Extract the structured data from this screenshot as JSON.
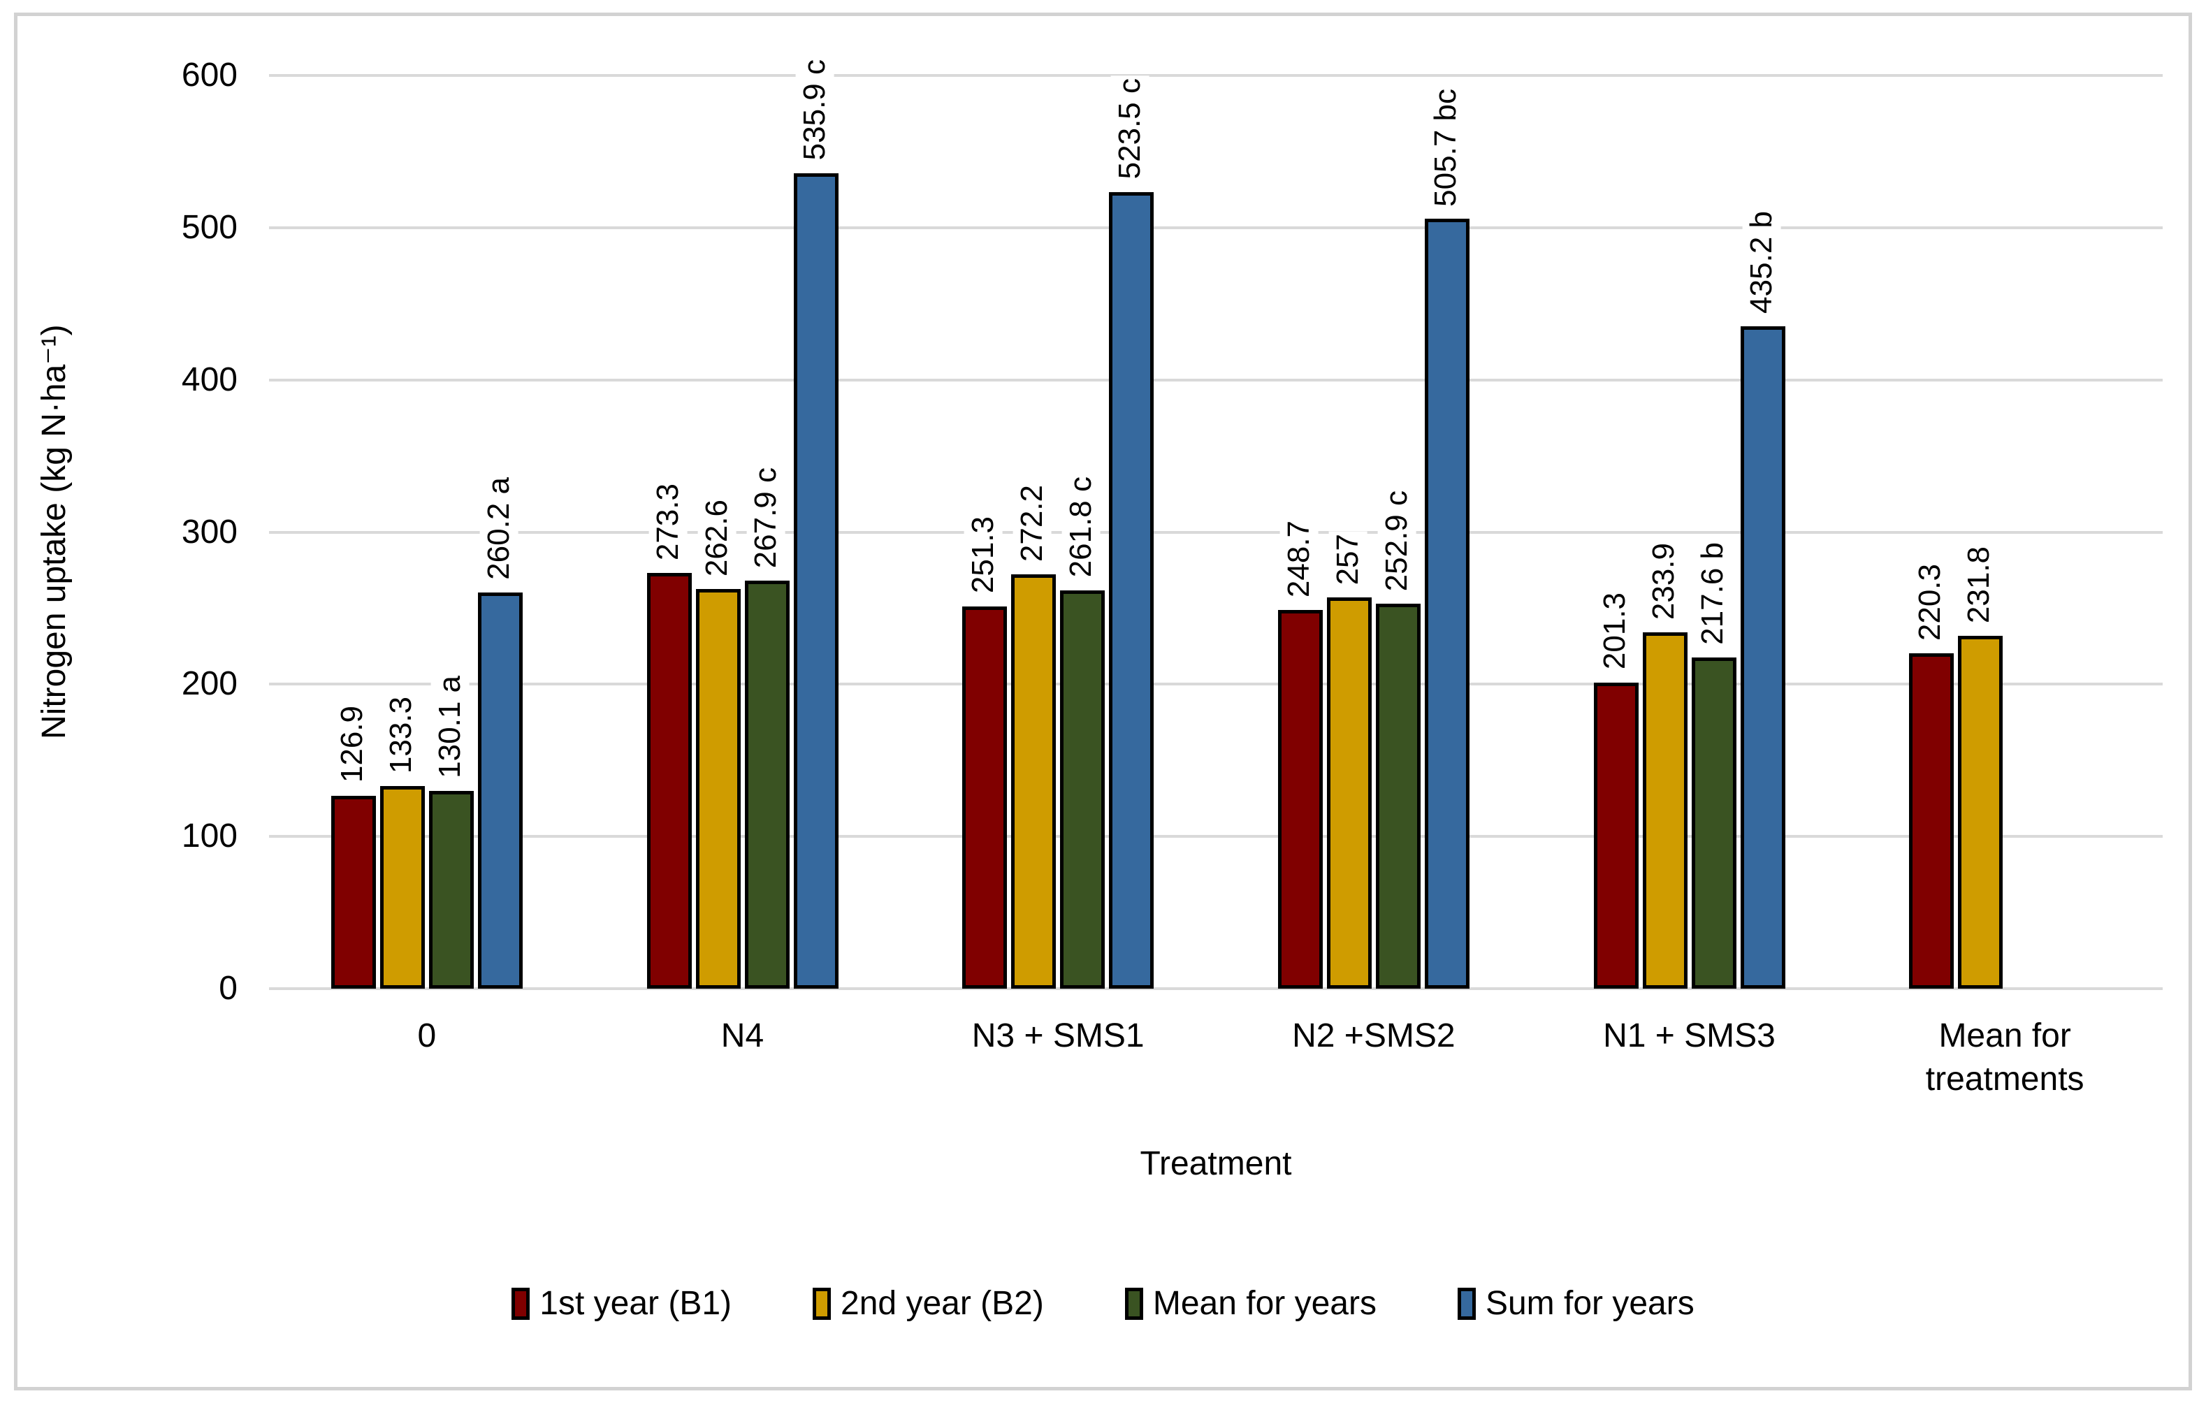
{
  "chart_data": {
    "type": "bar",
    "title": "",
    "xlabel": "Treatment",
    "ylabel": "Nitrogen uptake (kg N·ha⁻¹)",
    "ylim": [
      0,
      600
    ],
    "yticks": [
      0,
      100,
      200,
      300,
      400,
      500,
      600
    ],
    "grid": true,
    "grid_color": "#D9D9D9",
    "frame_color": "#D2D2D2",
    "legend_position": "bottom",
    "categories": [
      "0",
      "N4",
      "N3 + SMS1",
      "N2 +SMS2",
      "N1 + SMS3",
      "Mean for treatments"
    ],
    "series": [
      {
        "name": "1st year (B1)",
        "color": "#800000",
        "values": [
          126.9,
          273.3,
          251.3,
          248.7,
          201.3,
          220.3
        ],
        "labels": [
          "126.9",
          "273.3",
          "251.3",
          "248.7",
          "201.3",
          "220.3"
        ]
      },
      {
        "name": "2nd year (B2)",
        "color": "#CF9C00",
        "values": [
          133.3,
          262.6,
          272.2,
          257,
          233.9,
          231.8
        ],
        "labels": [
          "133.3",
          "262.6",
          "272.2",
          "257",
          "233.9",
          "231.8"
        ]
      },
      {
        "name": "Mean for years",
        "color": "#3A5322",
        "values": [
          130.1,
          267.9,
          261.8,
          252.9,
          217.6,
          null
        ],
        "labels": [
          "130.1 a",
          "267.9 c",
          "261.8 c",
          "252.9 c",
          "217.6 b",
          null
        ]
      },
      {
        "name": "Sum for years",
        "color": "#36699E",
        "values": [
          260.2,
          535.9,
          523.5,
          505.7,
          435.2,
          null
        ],
        "labels": [
          "260.2 a",
          "535.9 c",
          "523.5 c",
          "505.7 bc",
          "435.2 b",
          null
        ]
      }
    ]
  }
}
